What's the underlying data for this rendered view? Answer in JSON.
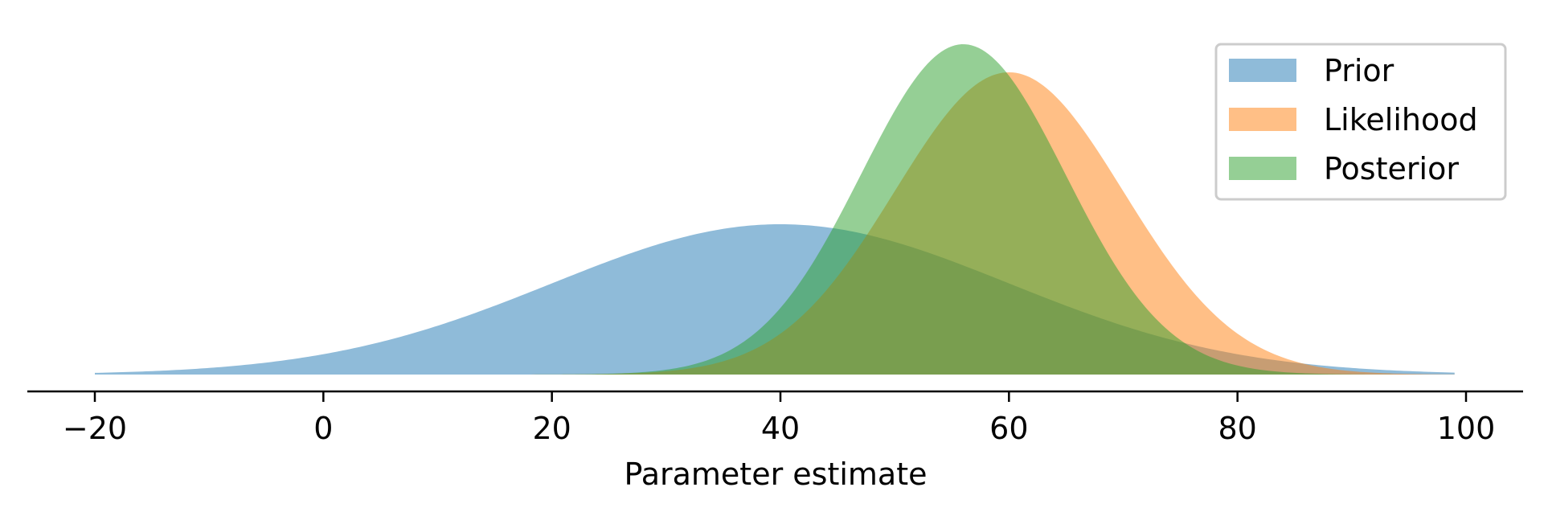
{
  "chart_data": {
    "type": "area",
    "title": "",
    "xlabel": "Parameter estimate",
    "ylabel": "",
    "xlim": [
      -26,
      106
    ],
    "ylim": [
      0,
      1.0
    ],
    "x_ticks": [
      -20,
      0,
      20,
      40,
      60,
      80,
      100
    ],
    "x_tick_labels": [
      "−20",
      "0",
      "20",
      "40",
      "60",
      "80",
      "100"
    ],
    "x_range": [
      -20,
      99
    ],
    "y_axis_visible": false,
    "grid": false,
    "legend_position": "top-right",
    "series": [
      {
        "name": "Prior",
        "distribution": "normal",
        "mean": 40,
        "sd": 20,
        "peak": 0.455,
        "color": "#1f77b4",
        "opacity": 0.5
      },
      {
        "name": "Likelihood",
        "distribution": "normal",
        "mean": 60,
        "sd": 10,
        "peak": 0.915,
        "color": "#ff7f0e",
        "opacity": 0.5
      },
      {
        "name": "Posterior",
        "distribution": "normal",
        "mean": 56,
        "sd": 8.94,
        "peak": 1.0,
        "color": "#2ca02c",
        "opacity": 0.5
      }
    ]
  }
}
